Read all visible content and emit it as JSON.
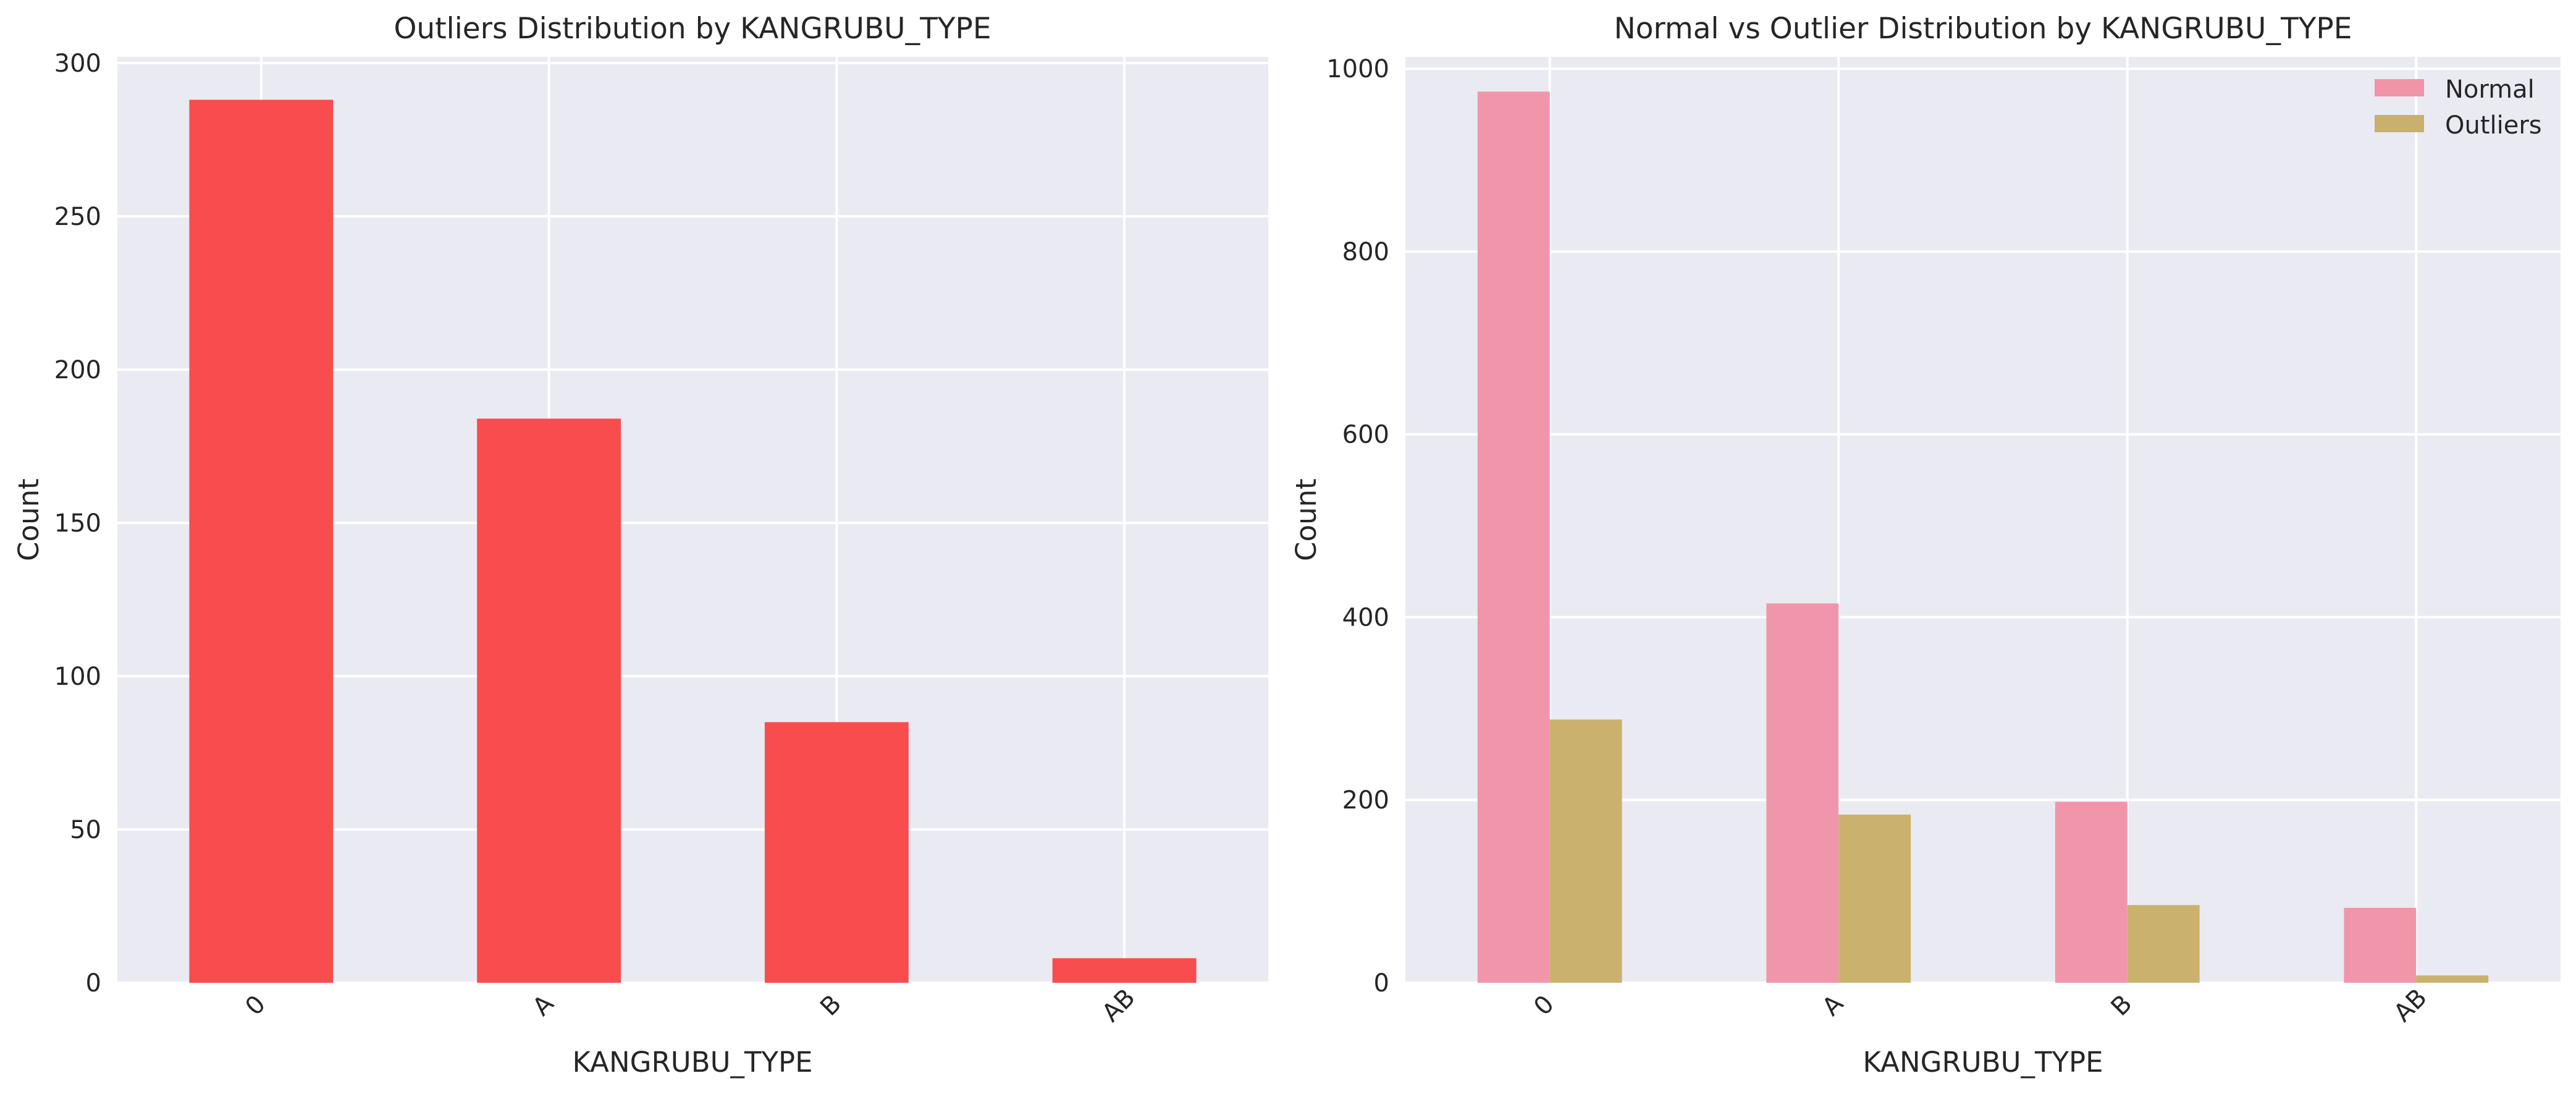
{
  "chart_data": [
    {
      "type": "bar",
      "title": "Outliers Distribution by KANGRUBU_TYPE",
      "xlabel": "KANGRUBU_TYPE",
      "ylabel": "Count",
      "categories": [
        "0",
        "A",
        "B",
        "AB"
      ],
      "ylim": [
        0,
        302
      ],
      "yticks": [
        0,
        50,
        100,
        150,
        200,
        250,
        300
      ],
      "grid": true,
      "series": [
        {
          "values": [
            288,
            184,
            85,
            8
          ],
          "color": "#f8484b"
        }
      ]
    },
    {
      "type": "bar",
      "title": "Normal vs Outlier Distribution by KANGRUBU_TYPE",
      "xlabel": "KANGRUBU_TYPE",
      "ylabel": "Count",
      "categories": [
        "0",
        "A",
        "B",
        "AB"
      ],
      "ylim": [
        0,
        1013
      ],
      "yticks": [
        0,
        200,
        400,
        600,
        800,
        1000
      ],
      "grid": true,
      "legend_position": "top-right",
      "series": [
        {
          "name": "Normal",
          "values": [
            975,
            415,
            198,
            82
          ],
          "color": "#f194a8"
        },
        {
          "name": "Outliers",
          "values": [
            288,
            184,
            85,
            8
          ],
          "color": "#c9b06b"
        }
      ]
    }
  ]
}
